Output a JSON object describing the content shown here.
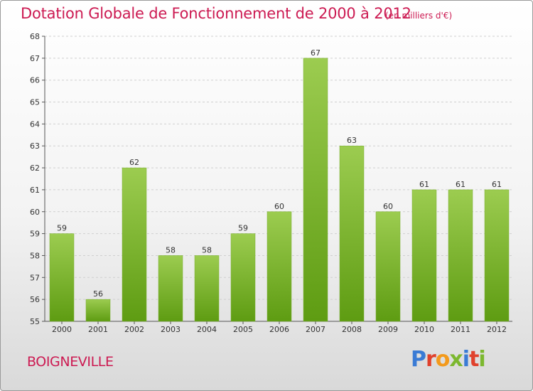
{
  "header": {
    "title": "Dotation Globale de Fonctionnement de 2000 à 2012",
    "subtitle": "(en milliers d'€)"
  },
  "footer": {
    "place": "BOIGNEVILLE",
    "logo": {
      "text": "Proxiti",
      "letter_colors": [
        "#3a7bd5",
        "#e0412c",
        "#f39a1c",
        "#7cb82f",
        "#3a7bd5",
        "#e0412c",
        "#7cb82f"
      ]
    }
  },
  "colors": {
    "title": "#cc1a52",
    "bar_light": "#9ccc50",
    "bar_dark": "#5e9c12",
    "grid": "#cfcfcf"
  },
  "chart_data": {
    "type": "bar",
    "categories": [
      "2000",
      "2001",
      "2002",
      "2003",
      "2004",
      "2005",
      "2006",
      "2007",
      "2008",
      "2009",
      "2010",
      "2011",
      "2012"
    ],
    "values": [
      59,
      56,
      62,
      58,
      58,
      59,
      60,
      67,
      63,
      60,
      61,
      61,
      61
    ],
    "ylim": [
      55,
      68
    ],
    "yticks": [
      55,
      56,
      57,
      58,
      59,
      60,
      61,
      62,
      63,
      64,
      65,
      66,
      67,
      68
    ],
    "grid": true,
    "data_labels": true
  }
}
